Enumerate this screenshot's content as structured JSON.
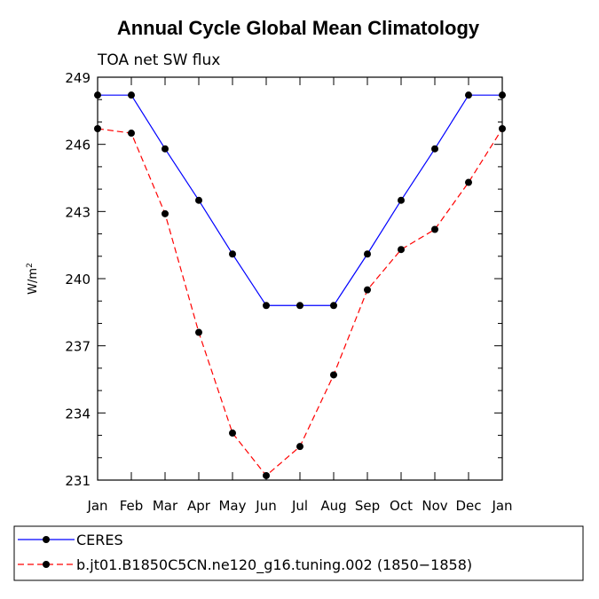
{
  "chart_data": {
    "type": "line",
    "title": "Annual Cycle Global Mean Climatology",
    "subtitle": "TOA net SW flux",
    "xlabel": "",
    "ylabel": "W/m",
    "ylabel_superscript": "2",
    "categories": [
      "Jan",
      "Feb",
      "Mar",
      "Apr",
      "May",
      "Jun",
      "Jul",
      "Aug",
      "Sep",
      "Oct",
      "Nov",
      "Dec",
      "Jan"
    ],
    "ylim": [
      231,
      249
    ],
    "yticks": [
      231,
      234,
      237,
      240,
      243,
      246,
      249
    ],
    "ytick_labels": [
      "231",
      "234",
      "237",
      "240",
      "243",
      "246",
      "249"
    ],
    "series": [
      {
        "name": "CERES",
        "color": "#0000ff",
        "dashed": false,
        "values": [
          248.2,
          248.2,
          245.8,
          243.5,
          241.1,
          238.8,
          238.8,
          238.8,
          241.1,
          243.5,
          245.8,
          248.2,
          248.2
        ]
      },
      {
        "name": "b.jt01.B1850C5CN.ne120_g16.tuning.002 (1850−1858)",
        "color": "#ff0000",
        "dashed": true,
        "values": [
          246.7,
          246.5,
          242.9,
          237.6,
          233.1,
          231.2,
          232.5,
          235.7,
          239.5,
          241.3,
          242.2,
          244.3,
          246.7
        ]
      }
    ],
    "legend_position": "bottom-left"
  }
}
